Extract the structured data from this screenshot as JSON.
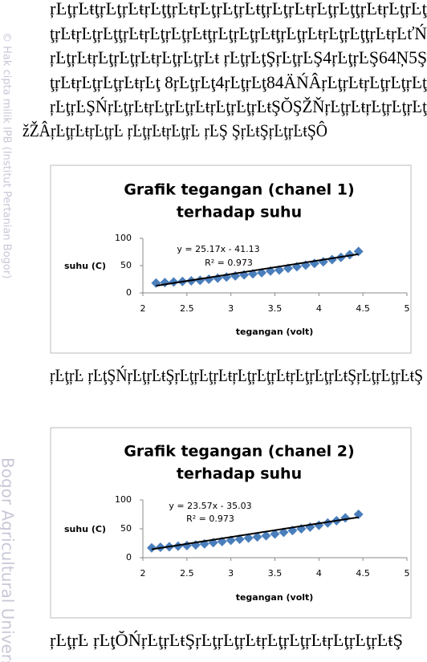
{
  "document": {
    "watermark": [
      "© Hak cipta milik IPB (Institut Pertanian Bogor)",
      "Bogor Agricultural University"
    ],
    "paragraph": [
      "ŗĿţŗĿŧţŗĿţŗĿŧŗĿţţŗĿŧŗĿţŗĿţŗĿŧţŗĿţŗĿŧŗĿţŗĿţţŗĿŧŗĿţŗĿţ",
      "ţŗĿŧŗĿţŗĿţţŗĿŧŗĿţŗĿţŗĿŧţŗĿţŗĿţŗĿŧţŗĿţŗĿŧŗĿţŗĿţţŗĿŧŗĿťŃ",
      "ŗĿţŗĿŧŗĿţŗĿţŗĿŧŗĿţŗĿţŗĿŧ ŗĿţŗĿţŞŗĿţŗĿŞ4ŗĿţŗĿŞ64Ņ5Ş",
      "ţŗĿŧŗĿţŗĿţŗĿŧŗĿţ 8ŗĿţŗĿţ4ŗĿţŗĿţ84ÄŃÂŗĿţŗĿŧŗĿţŗĿţŗĿţ",
      "ŗĿţŗĿŞŃŗĿţŗĿŧŗĿţŗĿţŗĿŧŗĿţŗĿţŗĿŧŞŎŞŽŇŗĿţŗĿŧŗĿţŗĿţŗĿţ",
      "žŽÂŗĿţŗĿŧŗĿţŗĿ ŗĿţŗĿŧŗĿţŗĿ ŗĿŞ ŞŗĿŧŞŗĿţŗĿŧŞÔ"
    ],
    "captions": [
      "ŗĿţŗĿ ŗĿţŞŃŗĿţŗĿŧŞŗĿţŗĿţŗĿŧŗĿţŗĿţŗĿŧŗĿţŗĿţŗĿŧŞŗĿţŗĿţŗĿŧŞ",
      "ŗĿţŗĿ ŗĿţŎŃŗĿţŗĿŧŞŗĿţŗĿţŗĿŧŗĿţŗĿţŗĿŧŗĿţŗĿţŗĿŧŞ"
    ]
  },
  "chart_data": [
    {
      "type": "scatter",
      "title": [
        "Grafik tegangan (chanel 1)",
        "terhadap suhu"
      ],
      "x_label": "tegangan (volt)",
      "y_label": "suhu (C)",
      "equation": "y = 25.17x - 41.13",
      "r_squared": "R² = 0.973",
      "xlim": [
        2,
        5
      ],
      "xticks": [
        2,
        2.5,
        3,
        3.5,
        4,
        4.5,
        5
      ],
      "ylim": [
        0,
        100
      ],
      "yticks": [
        0,
        50,
        100
      ],
      "series": [
        {
          "color": "#4a7ebb",
          "x": [
            2.15,
            2.25,
            2.35,
            2.45,
            2.55,
            2.65,
            2.75,
            2.85,
            2.95,
            3.05,
            3.15,
            3.25,
            3.35,
            3.45,
            3.55,
            3.65,
            3.75,
            3.85,
            3.95,
            4.05,
            4.15,
            4.25,
            4.35,
            4.45
          ],
          "values": [
            18,
            19,
            20,
            21,
            22,
            23,
            25,
            27,
            29,
            31,
            33,
            35,
            37,
            40,
            42,
            45,
            48,
            51,
            54,
            57,
            61,
            65,
            70,
            76
          ]
        }
      ],
      "trendline": {
        "color": "#000000",
        "x": [
          2.15,
          4.45
        ],
        "values": [
          13,
          71
        ]
      }
    },
    {
      "type": "scatter",
      "title": [
        "Grafik tegangan (chanel 2)",
        "terhadap suhu"
      ],
      "x_label": "tegangan (volt)",
      "y_label": "suhu (C)",
      "equation": "y = 23.57x - 35.03",
      "r_squared": "R² = 0.973",
      "xlim": [
        2,
        5
      ],
      "xticks": [
        2,
        2.5,
        3,
        3.5,
        4,
        4.5,
        5
      ],
      "ylim": [
        0,
        100
      ],
      "yticks": [
        0,
        50,
        100
      ],
      "series": [
        {
          "color": "#4a7ebb",
          "x": [
            2.1,
            2.2,
            2.3,
            2.4,
            2.5,
            2.6,
            2.7,
            2.8,
            2.9,
            3.0,
            3.1,
            3.2,
            3.3,
            3.4,
            3.5,
            3.6,
            3.7,
            3.8,
            3.9,
            4.0,
            4.1,
            4.2,
            4.3,
            4.45
          ],
          "values": [
            17,
            18,
            19,
            20,
            21,
            22,
            24,
            26,
            28,
            30,
            32,
            34,
            36,
            38,
            41,
            44,
            47,
            50,
            53,
            56,
            60,
            64,
            69,
            75
          ]
        }
      ],
      "trendline": {
        "color": "#000000",
        "x": [
          2.1,
          4.45
        ],
        "values": [
          14.5,
          70
        ]
      }
    }
  ]
}
